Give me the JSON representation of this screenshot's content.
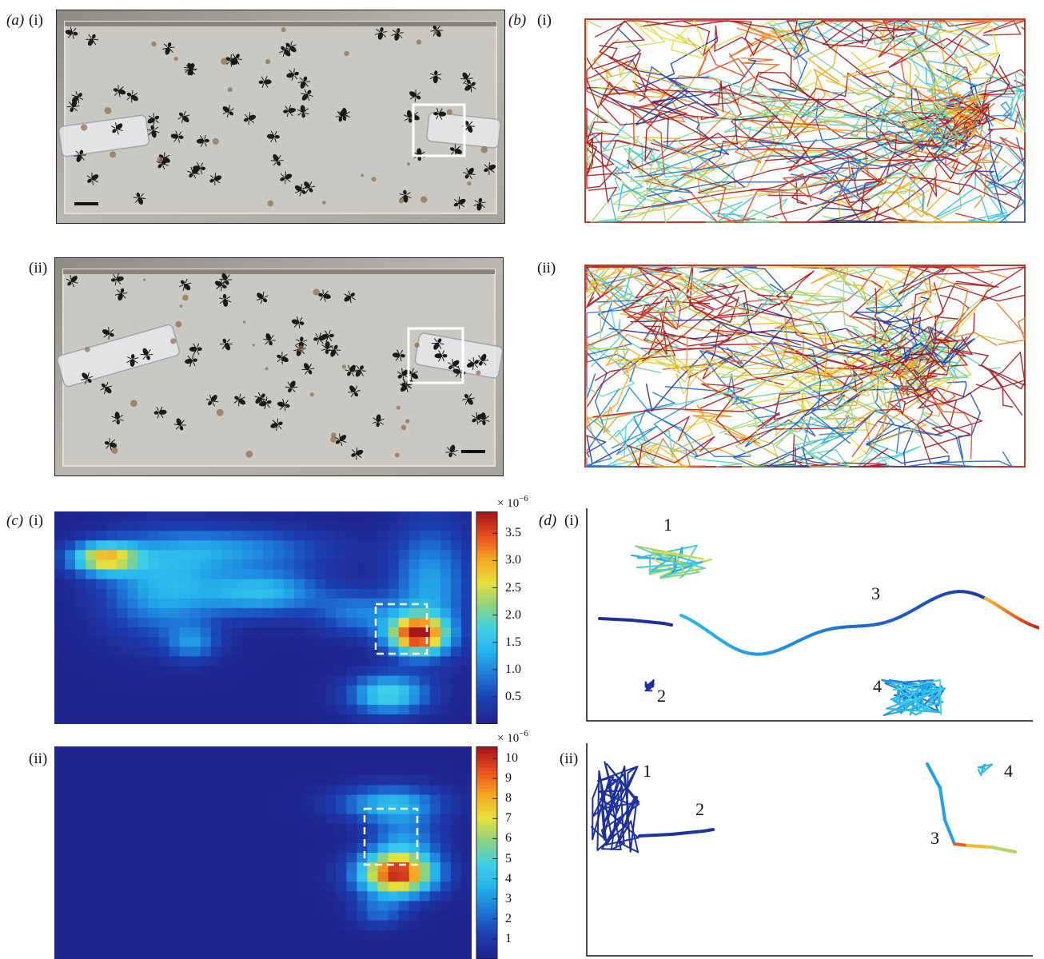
{
  "panels": {
    "a": {
      "letter": "(a)",
      "sub_i": "(i)",
      "sub_ii": "(ii)"
    },
    "b": {
      "letter": "(b)",
      "sub_i": "(i)",
      "sub_ii": "(ii)"
    },
    "c": {
      "letter": "(c)",
      "sub_i": "(i)",
      "sub_ii": "(ii)"
    },
    "d": {
      "letter": "(d)",
      "sub_i": "(i)",
      "sub_ii": "(ii)"
    }
  },
  "colormaps": {
    "jet": [
      "#20248f",
      "#1b3fb0",
      "#1e78d8",
      "#25b2ec",
      "#3fd0e8",
      "#8ad27e",
      "#e8e03a",
      "#f5a623",
      "#e8501e",
      "#a8161b"
    ]
  },
  "chart_data": [
    {
      "id": "c-i",
      "type": "heatmap",
      "colorbar_scale": "× 10",
      "colorbar_exponent": "−6",
      "colorbar_ticks": [
        "3.5",
        "3.0",
        "2.5",
        "2.0",
        "1.5",
        "1.0",
        "0.5"
      ],
      "colorbar_tick_values": [
        3.5,
        3.0,
        2.5,
        2.0,
        1.5,
        1.0,
        0.5
      ],
      "colorbar_range": [
        0.0,
        3.9
      ]
    },
    {
      "id": "c-ii",
      "type": "heatmap",
      "colorbar_scale": "× 10",
      "colorbar_exponent": "−6",
      "colorbar_ticks": [
        "10",
        "9",
        "8",
        "7",
        "6",
        "5",
        "4",
        "3",
        "2",
        "1"
      ],
      "colorbar_tick_values": [
        10,
        9,
        8,
        7,
        6,
        5,
        4,
        3,
        2,
        1
      ],
      "colorbar_range": [
        0.0,
        10.6
      ]
    }
  ],
  "trajectories": {
    "d_i": {
      "labels": [
        "1",
        "2",
        "3",
        "4"
      ]
    },
    "d_ii": {
      "labels": [
        "1",
        "2",
        "3",
        "4"
      ]
    }
  }
}
